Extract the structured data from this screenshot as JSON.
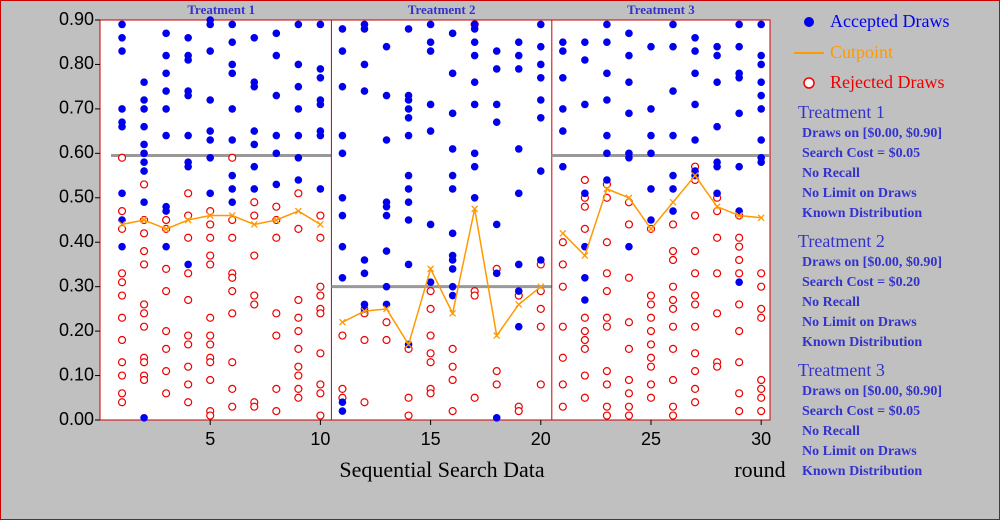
{
  "chart_data": {
    "type": "scatter",
    "xlabel": "Sequential Search Data",
    "xunit": "round",
    "xlim": [
      0,
      30.4
    ],
    "ylim": [
      0,
      0.9
    ],
    "xticks": [
      5,
      10,
      15,
      20,
      25,
      30
    ],
    "yticks": [
      {
        "value": 0,
        "label": "0.00"
      },
      {
        "value": 0.1,
        "label": "0.10"
      },
      {
        "value": 0.2,
        "label": "0.20"
      },
      {
        "value": 0.3,
        "label": "0.30"
      },
      {
        "value": 0.4,
        "label": "0.40"
      },
      {
        "value": 0.5,
        "label": "0.50"
      },
      {
        "value": 0.6,
        "label": "0.60"
      },
      {
        "value": 0.7,
        "label": "0.70"
      },
      {
        "value": 0.8,
        "label": "0.80"
      },
      {
        "value": 0.9,
        "label": "0.90"
      }
    ],
    "legend": {
      "accepted": {
        "name": "Accepted Draws",
        "color": "#0000ee"
      },
      "cutpoint": {
        "name": "Cutpoint",
        "color": "#ff9900"
      },
      "rejected": {
        "name": "Rejected Draws",
        "color": "#ee0000"
      }
    },
    "treatments": [
      {
        "title": "Treatment 1",
        "lines": [
          "Draws on [$0.00, $0.90]",
          "Search Cost = $0.05",
          "No Recall",
          "No Limit on Draws",
          "Known Distribution"
        ]
      },
      {
        "title": "Treatment 2",
        "lines": [
          "Draws on [$0.00, $0.90]",
          "Search Cost = $0.20",
          "No Recall",
          "No Limit on Draws",
          "Known Distribution"
        ]
      },
      {
        "title": "Treatment 3",
        "lines": [
          "Draws on [$0.00, $0.90]",
          "Search Cost = $0.05",
          "No Recall",
          "No Limit on Draws",
          "Known Distribution"
        ]
      }
    ],
    "panels": [
      {
        "range": [
          0.5,
          10.5
        ],
        "reference": 0.595,
        "rounds": [
          1,
          2,
          3,
          4,
          5,
          6,
          7,
          8,
          9,
          10
        ],
        "cutpoint": [
          0.44,
          0.45,
          0.43,
          0.45,
          0.46,
          0.46,
          0.44,
          0.45,
          0.47,
          0.44
        ],
        "accepted": [
          [
            0.89,
            0.86,
            0.83,
            0.7,
            0.67,
            0.66,
            0.51,
            0.45,
            0.39
          ],
          [
            0.76,
            0.72,
            0.7,
            0.66,
            0.62,
            0.6,
            0.58,
            0.56,
            0.49,
            0.005
          ],
          [
            0.87,
            0.82,
            0.78,
            0.74,
            0.7,
            0.64,
            0.48,
            0.47,
            0.39
          ],
          [
            0.86,
            0.82,
            0.81,
            0.74,
            0.73,
            0.64,
            0.58,
            0.57,
            0.35
          ],
          [
            0.9,
            0.89,
            0.83,
            0.72,
            0.65,
            0.63,
            0.59,
            0.51
          ],
          [
            0.89,
            0.85,
            0.8,
            0.78,
            0.7,
            0.63,
            0.55,
            0.52,
            0.49
          ],
          [
            0.86,
            0.76,
            0.75,
            0.65,
            0.62,
            0.57,
            0.52
          ],
          [
            0.87,
            0.82,
            0.73,
            0.64,
            0.6,
            0.53
          ],
          [
            0.89,
            0.8,
            0.75,
            0.7,
            0.64,
            0.59,
            0.54
          ],
          [
            0.89,
            0.79,
            0.77,
            0.72,
            0.71,
            0.65,
            0.64,
            0.52
          ]
        ],
        "rejected": [
          [
            0.59,
            0.47,
            0.43,
            0.33,
            0.31,
            0.28,
            0.23,
            0.18,
            0.13,
            0.1,
            0.06,
            0.04
          ],
          [
            0.53,
            0.45,
            0.42,
            0.38,
            0.35,
            0.26,
            0.24,
            0.21,
            0.14,
            0.13,
            0.1,
            0.09
          ],
          [
            0.45,
            0.43,
            0.34,
            0.29,
            0.2,
            0.16,
            0.11,
            0.06
          ],
          [
            0.51,
            0.46,
            0.41,
            0.33,
            0.27,
            0.19,
            0.17,
            0.12,
            0.08,
            0.04
          ],
          [
            0.47,
            0.44,
            0.41,
            0.37,
            0.35,
            0.23,
            0.19,
            0.17,
            0.14,
            0.13,
            0.09,
            0.02,
            0.01
          ],
          [
            0.59,
            0.45,
            0.41,
            0.33,
            0.32,
            0.29,
            0.24,
            0.13,
            0.07,
            0.03
          ],
          [
            0.49,
            0.46,
            0.37,
            0.28,
            0.26,
            0.04,
            0.03
          ],
          [
            0.48,
            0.45,
            0.41,
            0.24,
            0.19,
            0.07,
            0.02
          ],
          [
            0.51,
            0.43,
            0.27,
            0.23,
            0.2,
            0.16,
            0.12,
            0.1,
            0.07,
            0.05
          ],
          [
            0.46,
            0.41,
            0.3,
            0.28,
            0.25,
            0.24,
            0.15,
            0.08,
            0.06,
            0.01
          ]
        ]
      },
      {
        "range": [
          10.5,
          20.5
        ],
        "reference": 0.3,
        "rounds": [
          11,
          12,
          13,
          14,
          15,
          16,
          17,
          18,
          19,
          20
        ],
        "cutpoint": [
          0.22,
          0.245,
          0.25,
          0.17,
          0.34,
          0.24,
          0.475,
          0.19,
          0.26,
          0.3
        ],
        "accepted": [
          [
            0.88,
            0.83,
            0.75,
            0.64,
            0.6,
            0.5,
            0.46,
            0.39,
            0.32,
            0.04,
            0.02
          ],
          [
            0.89,
            0.88,
            0.8,
            0.74,
            0.36,
            0.33,
            0.26,
            0.25
          ],
          [
            0.84,
            0.73,
            0.63,
            0.49,
            0.48,
            0.46,
            0.38,
            0.3,
            0.26
          ],
          [
            0.88,
            0.73,
            0.72,
            0.7,
            0.68,
            0.64,
            0.55,
            0.52,
            0.49,
            0.45,
            0.35,
            0.17
          ],
          [
            0.89,
            0.85,
            0.83,
            0.71,
            0.65,
            0.44,
            0.31
          ],
          [
            0.87,
            0.78,
            0.69,
            0.61,
            0.55,
            0.52,
            0.42,
            0.37,
            0.36,
            0.34,
            0.3,
            0.28
          ],
          [
            0.89,
            0.88,
            0.85,
            0.82,
            0.76,
            0.71,
            0.6,
            0.57,
            0.5
          ],
          [
            0.83,
            0.79,
            0.71,
            0.67,
            0.44,
            0.33,
            0.005
          ],
          [
            0.85,
            0.82,
            0.79,
            0.61,
            0.51,
            0.35,
            0.29,
            0.21
          ],
          [
            0.89,
            0.84,
            0.8,
            0.77,
            0.72,
            0.68,
            0.56,
            0.36
          ]
        ],
        "rejected": [
          [
            0.19,
            0.07,
            0.05
          ],
          [
            0.24,
            0.18,
            0.04
          ],
          [
            0.22,
            0.18
          ],
          [
            0.16,
            0.05,
            0.01
          ],
          [
            0.29,
            0.25,
            0.19,
            0.15,
            0.13,
            0.07,
            0.06
          ],
          [
            0.16,
            0.12,
            0.09,
            0.02
          ],
          [
            0.89,
            0.29,
            0.28,
            0.05
          ],
          [
            0.34,
            0.11,
            0.08
          ],
          [
            0.28,
            0.03,
            0.02
          ],
          [
            0.35,
            0.29,
            0.25,
            0.21,
            0.08
          ]
        ]
      },
      {
        "range": [
          20.5,
          30.4
        ],
        "reference": 0.595,
        "rounds": [
          21,
          22,
          23,
          24,
          25,
          26,
          27,
          28,
          29,
          30
        ],
        "cutpoint": [
          0.42,
          0.37,
          0.52,
          0.5,
          0.43,
          0.49,
          0.55,
          0.48,
          0.46,
          0.455
        ],
        "accepted": [
          [
            0.85,
            0.83,
            0.77,
            0.7,
            0.65,
            0.57
          ],
          [
            0.85,
            0.81,
            0.71,
            0.51,
            0.39,
            0.32,
            0.27
          ],
          [
            0.89,
            0.85,
            0.78,
            0.72,
            0.64,
            0.6,
            0.54
          ],
          [
            0.87,
            0.82,
            0.76,
            0.69,
            0.6,
            0.59,
            0.39
          ],
          [
            0.84,
            0.7,
            0.64,
            0.6,
            0.52,
            0.45
          ],
          [
            0.89,
            0.84,
            0.74,
            0.64,
            0.55,
            0.52,
            0.47
          ],
          [
            0.86,
            0.83,
            0.78,
            0.71,
            0.63,
            0.56,
            0.55
          ],
          [
            0.84,
            0.82,
            0.76,
            0.66,
            0.58,
            0.57,
            0.51
          ],
          [
            0.89,
            0.84,
            0.78,
            0.77,
            0.69,
            0.57,
            0.47,
            0.31
          ],
          [
            0.89,
            0.82,
            0.8,
            0.76,
            0.73,
            0.7,
            0.63,
            0.59,
            0.58
          ]
        ],
        "rejected": [
          [
            0.4,
            0.35,
            0.3,
            0.21,
            0.14,
            0.08,
            0.03
          ],
          [
            0.54,
            0.5,
            0.48,
            0.43,
            0.23,
            0.2,
            0.18,
            0.16,
            0.1,
            0.05
          ],
          [
            0.53,
            0.5,
            0.4,
            0.33,
            0.29,
            0.23,
            0.21,
            0.11,
            0.08,
            0.03,
            0.01
          ],
          [
            0.49,
            0.44,
            0.32,
            0.22,
            0.16,
            0.09,
            0.06,
            0.03,
            0.01
          ],
          [
            0.43,
            0.28,
            0.26,
            0.23,
            0.2,
            0.17,
            0.14,
            0.12,
            0.08,
            0.05
          ],
          [
            0.44,
            0.38,
            0.36,
            0.3,
            0.27,
            0.25,
            0.21,
            0.16,
            0.09,
            0.03,
            0.01
          ],
          [
            0.57,
            0.54,
            0.46,
            0.38,
            0.33,
            0.28,
            0.26,
            0.21,
            0.15,
            0.11,
            0.07,
            0.04
          ],
          [
            0.5,
            0.47,
            0.41,
            0.33,
            0.24,
            0.13,
            0.12
          ],
          [
            0.46,
            0.41,
            0.39,
            0.36,
            0.33,
            0.26,
            0.2,
            0.13,
            0.06,
            0.02
          ],
          [
            0.33,
            0.3,
            0.25,
            0.23,
            0.09,
            0.07,
            0.05,
            0.02
          ]
        ]
      }
    ]
  }
}
